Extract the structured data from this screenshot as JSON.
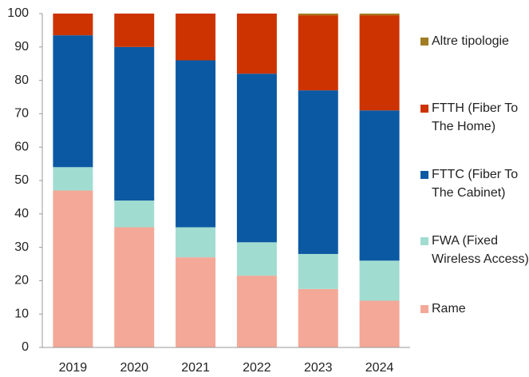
{
  "chart_data": {
    "type": "stacked_bar",
    "categories": [
      "2019",
      "2020",
      "2021",
      "2022",
      "2023",
      "2024"
    ],
    "series": [
      {
        "name": "Rame",
        "color": "#f4a897",
        "values": [
          47,
          36,
          27,
          21.5,
          17.5,
          14
        ]
      },
      {
        "name": "FWA (Fixed Wireless Access)",
        "color": "#a1dcd1",
        "values": [
          7,
          8,
          9,
          10,
          10.5,
          12
        ]
      },
      {
        "name": "FTTC (Fiber To The Cabinet)",
        "color": "#0b59a3",
        "values": [
          39.5,
          46,
          50,
          50.5,
          49,
          45
        ]
      },
      {
        "name": "FTTH (Fiber To The Home)",
        "color": "#cc3300",
        "values": [
          6.5,
          10,
          14,
          18,
          22.5,
          28.5
        ]
      },
      {
        "name": "Altre tipologie",
        "color": "#a07d22",
        "values": [
          0,
          0,
          0,
          0,
          0.5,
          0.5
        ]
      }
    ],
    "ylim": [
      0,
      100
    ],
    "yticks": [
      0,
      10,
      20,
      30,
      40,
      50,
      60,
      70,
      80,
      90,
      100
    ]
  }
}
